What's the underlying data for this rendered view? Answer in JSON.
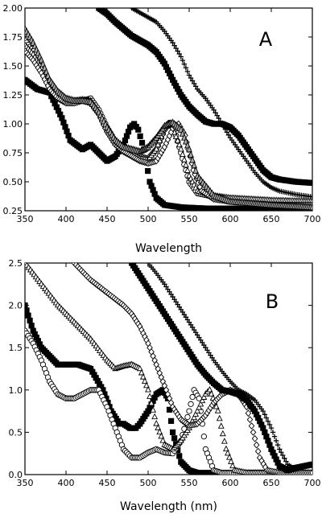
{
  "chart_data": [
    {
      "type": "line",
      "panel_label": "A",
      "xlabel": "Wavelength",
      "ylabel": "",
      "xlim": [
        350,
        700
      ],
      "ylim": [
        0.25,
        2.0
      ],
      "xticks": [
        "350",
        "400",
        "450",
        "500",
        "550",
        "600",
        "650",
        "700"
      ],
      "yticks": [
        "0.25",
        "0.50",
        "0.75",
        "1.00",
        "1.25",
        "1.50",
        "1.75",
        "2.00"
      ],
      "grid": false,
      "legend": null,
      "series": [
        {
          "marker": "square",
          "x": [
            350,
            365,
            380,
            395,
            405,
            420,
            430,
            440,
            450,
            460,
            470,
            478,
            483,
            488,
            495,
            502,
            510,
            520,
            540,
            570,
            600,
            650,
            700
          ],
          "y": [
            1.38,
            1.3,
            1.27,
            1.05,
            0.86,
            0.78,
            0.82,
            0.75,
            0.68,
            0.72,
            0.82,
            0.97,
            1.0,
            0.95,
            0.78,
            0.5,
            0.36,
            0.3,
            0.28,
            0.27,
            0.27,
            0.26,
            0.26
          ]
        },
        {
          "marker": "circle",
          "x": [
            350,
            360,
            370,
            380,
            390,
            400,
            410,
            420,
            430,
            440,
            450,
            460,
            470,
            480,
            490,
            500,
            510,
            520,
            526,
            532,
            540,
            550,
            560,
            580,
            600,
            650,
            700
          ],
          "y": [
            1.72,
            1.63,
            1.5,
            1.35,
            1.25,
            1.2,
            1.2,
            1.2,
            1.22,
            1.12,
            0.97,
            0.85,
            0.8,
            0.76,
            0.72,
            0.7,
            0.78,
            0.95,
            1.01,
            0.95,
            0.75,
            0.5,
            0.4,
            0.37,
            0.35,
            0.33,
            0.32
          ]
        },
        {
          "marker": "triangle",
          "x": [
            350,
            360,
            370,
            380,
            390,
            400,
            410,
            420,
            430,
            440,
            450,
            460,
            470,
            480,
            490,
            500,
            510,
            520,
            525,
            530,
            540,
            550,
            560,
            580,
            600,
            650,
            700
          ],
          "y": [
            1.68,
            1.6,
            1.48,
            1.34,
            1.24,
            1.2,
            1.2,
            1.21,
            1.2,
            1.1,
            0.95,
            0.83,
            0.78,
            0.74,
            0.7,
            0.69,
            0.78,
            0.96,
            1.0,
            0.96,
            0.78,
            0.55,
            0.42,
            0.38,
            0.36,
            0.34,
            0.33
          ]
        },
        {
          "marker": "diamond",
          "x": [
            350,
            360,
            370,
            380,
            390,
            400,
            410,
            420,
            430,
            440,
            450,
            460,
            470,
            480,
            490,
            500,
            510,
            520,
            530,
            537,
            545,
            555,
            565,
            580,
            600,
            650,
            700
          ],
          "y": [
            1.63,
            1.55,
            1.44,
            1.3,
            1.22,
            1.18,
            1.18,
            1.2,
            1.18,
            1.08,
            0.93,
            0.82,
            0.76,
            0.72,
            0.68,
            0.66,
            0.68,
            0.8,
            0.96,
            1.0,
            0.9,
            0.6,
            0.42,
            0.35,
            0.33,
            0.3,
            0.3
          ]
        },
        {
          "marker": "star",
          "x": [
            350,
            360,
            370,
            380,
            390,
            400,
            410,
            420,
            430,
            440,
            450,
            460,
            470,
            480,
            490,
            500,
            510,
            520,
            530,
            540,
            550,
            560,
            580,
            600,
            650,
            700
          ],
          "y": [
            1.82,
            1.7,
            1.55,
            1.38,
            1.28,
            1.22,
            1.2,
            1.2,
            1.19,
            1.1,
            0.97,
            0.86,
            0.8,
            0.78,
            0.76,
            0.8,
            0.88,
            0.98,
            1.01,
            0.95,
            0.78,
            0.55,
            0.38,
            0.33,
            0.3,
            0.28
          ]
        },
        {
          "marker": "filled-square",
          "x": [
            440,
            450,
            460,
            470,
            480,
            490,
            500,
            510,
            520,
            530,
            540,
            550,
            560,
            570,
            580,
            590,
            600,
            610,
            620,
            630,
            640,
            650,
            660,
            680,
            700
          ],
          "y": [
            2.0,
            1.95,
            1.88,
            1.82,
            1.76,
            1.72,
            1.68,
            1.62,
            1.52,
            1.38,
            1.25,
            1.15,
            1.08,
            1.02,
            1.0,
            1.0,
            0.97,
            0.9,
            0.8,
            0.7,
            0.6,
            0.54,
            0.52,
            0.5,
            0.49
          ]
        },
        {
          "marker": "plus",
          "x": [
            480,
            490,
            500,
            510,
            520,
            530,
            540,
            550,
            560,
            570,
            580,
            590,
            600,
            610,
            620,
            630,
            640,
            650,
            660,
            680,
            700
          ],
          "y": [
            2.0,
            1.96,
            1.92,
            1.88,
            1.8,
            1.7,
            1.58,
            1.42,
            1.3,
            1.22,
            1.12,
            1.0,
            0.88,
            0.78,
            0.68,
            0.58,
            0.5,
            0.45,
            0.42,
            0.39,
            0.37
          ]
        }
      ]
    },
    {
      "type": "line",
      "panel_label": "B",
      "xlabel": "Wavelength (nm)",
      "ylabel": "",
      "xlim": [
        350,
        700
      ],
      "ylim": [
        0.0,
        2.5
      ],
      "xticks": [
        "350",
        "400",
        "450",
        "500",
        "550",
        "600",
        "650",
        "700"
      ],
      "yticks": [
        "0.0",
        "0.5",
        "1.0",
        "1.5",
        "2.0",
        "2.5"
      ],
      "grid": false,
      "legend": null,
      "series": [
        {
          "marker": "filled-square",
          "x": [
            350,
            360,
            370,
            380,
            390,
            400,
            415,
            430,
            445,
            455,
            465,
            470,
            478,
            485,
            490,
            500,
            510,
            518,
            524,
            530,
            540,
            550,
            560,
            580,
            600,
            650,
            700
          ],
          "y": [
            2.0,
            1.7,
            1.5,
            1.4,
            1.3,
            1.3,
            1.3,
            1.25,
            1.0,
            0.75,
            0.6,
            0.6,
            0.55,
            0.55,
            0.6,
            0.75,
            0.95,
            1.0,
            0.9,
            0.5,
            0.15,
            0.05,
            0.02,
            0.02,
            0.02,
            0.02,
            0.02
          ]
        },
        {
          "marker": "circle",
          "x": [
            350,
            360,
            370,
            380,
            390,
            400,
            410,
            420,
            430,
            440,
            450,
            460,
            470,
            480,
            490,
            500,
            510,
            520,
            530,
            540,
            550,
            556,
            562,
            570,
            580,
            590,
            600,
            620,
            650,
            700
          ],
          "y": [
            1.7,
            1.55,
            1.35,
            1.1,
            0.95,
            0.9,
            0.9,
            0.95,
            1.0,
            1.0,
            0.8,
            0.55,
            0.3,
            0.2,
            0.2,
            0.26,
            0.3,
            0.26,
            0.25,
            0.4,
            0.75,
            1.0,
            0.9,
            0.3,
            0.05,
            0.02,
            0.02,
            0.02,
            0.02,
            0.02
          ]
        },
        {
          "marker": "triangle",
          "x": [
            350,
            370,
            390,
            410,
            430,
            450,
            460,
            470,
            480,
            490,
            500,
            510,
            520,
            530,
            540,
            550,
            560,
            570,
            575,
            585,
            595,
            605,
            620,
            650,
            700
          ],
          "y": [
            2.5,
            2.25,
            2.0,
            1.8,
            1.6,
            1.35,
            1.25,
            1.28,
            1.3,
            1.25,
            1.0,
            0.6,
            0.35,
            0.3,
            0.4,
            0.55,
            0.75,
            0.95,
            1.0,
            0.75,
            0.3,
            0.05,
            0.02,
            0.02,
            0.02
          ]
        },
        {
          "marker": "diamond",
          "x": [
            410,
            430,
            450,
            470,
            480,
            490,
            500,
            510,
            520,
            530,
            540,
            550,
            560,
            570,
            580,
            590,
            600,
            610,
            620,
            628,
            636,
            645,
            660,
            700
          ],
          "y": [
            2.5,
            2.3,
            2.15,
            2.0,
            1.9,
            1.75,
            1.55,
            1.3,
            1.05,
            0.8,
            0.65,
            0.58,
            0.6,
            0.7,
            0.85,
            0.95,
            1.0,
            0.95,
            0.8,
            0.5,
            0.2,
            0.05,
            0.02,
            0.02
          ]
        },
        {
          "marker": "filled-square",
          "x": [
            480,
            490,
            500,
            510,
            520,
            530,
            540,
            550,
            560,
            570,
            580,
            590,
            600,
            610,
            620,
            630,
            640,
            650,
            660,
            670,
            680,
            700
          ],
          "y": [
            2.5,
            2.35,
            2.2,
            2.05,
            1.9,
            1.75,
            1.6,
            1.45,
            1.3,
            1.18,
            1.08,
            1.0,
            0.98,
            0.95,
            0.88,
            0.75,
            0.55,
            0.3,
            0.1,
            0.05,
            0.08,
            0.12
          ]
        },
        {
          "marker": "plus",
          "x": [
            500,
            510,
            520,
            530,
            540,
            550,
            560,
            570,
            580,
            590,
            600,
            610,
            620,
            630,
            640,
            650,
            660,
            670,
            680,
            690,
            700
          ],
          "y": [
            2.5,
            2.38,
            2.25,
            2.1,
            1.95,
            1.8,
            1.65,
            1.5,
            1.35,
            1.22,
            1.1,
            1.0,
            0.95,
            0.88,
            0.75,
            0.55,
            0.3,
            0.12,
            0.06,
            0.1,
            0.12
          ]
        }
      ]
    }
  ]
}
